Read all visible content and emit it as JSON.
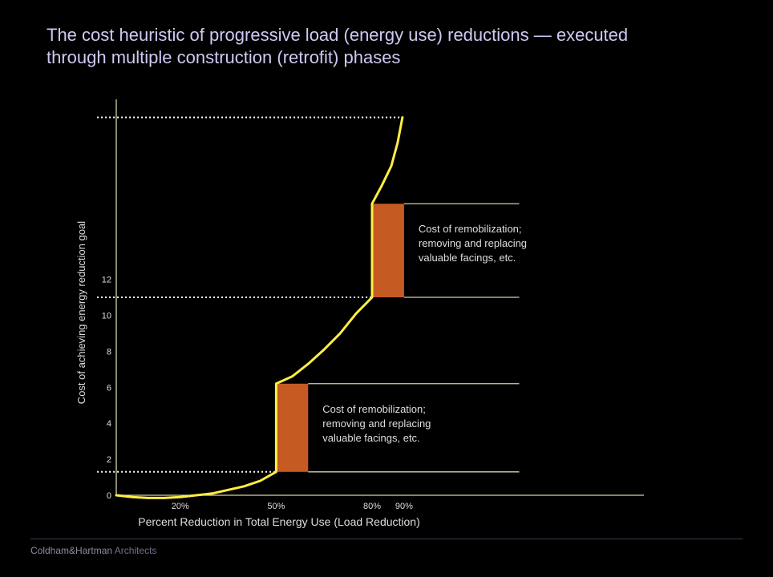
{
  "title_line1": "The cost heuristic of progressive load (energy use) reductions — executed",
  "title_line2": "through multiple construction (retrofit) phases",
  "footer": {
    "firm": "Coldham&Hartman",
    "suffix": " Architects"
  },
  "chart_data": {
    "type": "line",
    "title": "The cost heuristic of progressive load (energy use) reductions — executed through multiple construction (retrofit) phases",
    "xlabel": "Percent Reduction in Total Energy Use (Load Reduction)",
    "ylabel": "Cost of achieving energy reduction goal",
    "xlim": [
      0,
      165
    ],
    "ylim": [
      0,
      22
    ],
    "x_ticks": [
      {
        "value": 20,
        "label": "20%"
      },
      {
        "value": 50,
        "label": "50%"
      },
      {
        "value": 80,
        "label": "80%"
      },
      {
        "value": 90,
        "label": "90%"
      }
    ],
    "y_ticks": [
      0,
      2,
      4,
      6,
      8,
      10,
      12
    ],
    "y_tick_labels": [
      "0",
      "2",
      "4",
      "6",
      "8",
      "10",
      "12"
    ],
    "series": [
      {
        "color": "#ffee44",
        "points": [
          [
            0,
            0
          ],
          [
            5,
            -0.1
          ],
          [
            10,
            -0.15
          ],
          [
            15,
            -0.15
          ],
          [
            20,
            -0.1
          ],
          [
            25,
            0
          ],
          [
            30,
            0.1
          ],
          [
            35,
            0.3
          ],
          [
            40,
            0.5
          ],
          [
            45,
            0.8
          ],
          [
            50,
            1.3
          ],
          [
            50,
            6.2
          ],
          [
            55,
            6.6
          ],
          [
            60,
            7.3
          ],
          [
            65,
            8.1
          ],
          [
            70,
            9.0
          ],
          [
            75,
            10.1
          ],
          [
            80,
            11.0
          ],
          [
            80,
            16.2
          ],
          [
            83,
            17.2
          ],
          [
            86,
            18.3
          ],
          [
            88,
            19.6
          ],
          [
            89.5,
            21.0
          ]
        ]
      }
    ],
    "reference_lines": [
      {
        "y": 1.3,
        "from_x": -6,
        "to_x": 50
      },
      {
        "y": 11.0,
        "from_x": -6,
        "to_x": 80
      },
      {
        "y": 21.0,
        "from_x": -6,
        "to_x": 89.5
      }
    ],
    "phase_jumps": [
      {
        "x0": 50,
        "x1": 60,
        "y0": 1.3,
        "y1": 6.2,
        "color": "#c55a23",
        "line_to_x": 126,
        "label": [
          "Cost of remobilization;",
          "removing and replacing",
          "valuable facings, etc."
        ]
      },
      {
        "x0": 80,
        "x1": 90,
        "y0": 11.0,
        "y1": 16.2,
        "color": "#c55a23",
        "line_to_x": 126,
        "label": [
          "Cost of remobilization;",
          "removing and replacing",
          "valuable facings, etc."
        ]
      }
    ],
    "colors": {
      "axis": "#d6d0a6",
      "curve": "#ffee44",
      "dotted": "#ffffff",
      "fill": "#c55a23",
      "text": "#dedede"
    },
    "grid": false,
    "legend": "none"
  }
}
